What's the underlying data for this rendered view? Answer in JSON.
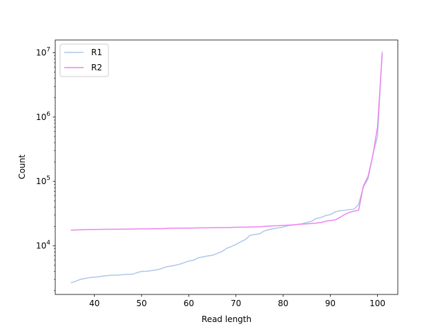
{
  "chart_data": {
    "type": "line",
    "xlabel": "Read length",
    "ylabel": "Count",
    "yscale": "log",
    "xlim": [
      31.7,
      104.3
    ],
    "ylim": [
      1750,
      15800000
    ],
    "xticks": [
      40,
      50,
      60,
      70,
      80,
      90,
      100
    ],
    "yticks": [
      {
        "base": "10",
        "exp": "4",
        "value": 10000
      },
      {
        "base": "10",
        "exp": "5",
        "value": 100000
      },
      {
        "base": "10",
        "exp": "6",
        "value": 1000000
      },
      {
        "base": "10",
        "exp": "7",
        "value": 10000000
      }
    ],
    "grid": false,
    "legend_position": "top-left",
    "x": [
      35,
      36,
      37,
      38,
      39,
      40,
      41,
      42,
      43,
      44,
      45,
      46,
      47,
      48,
      49,
      50,
      51,
      52,
      53,
      54,
      55,
      56,
      57,
      58,
      59,
      60,
      61,
      62,
      63,
      64,
      65,
      66,
      67,
      68,
      69,
      70,
      71,
      72,
      73,
      74,
      75,
      76,
      77,
      78,
      79,
      80,
      81,
      82,
      83,
      84,
      85,
      86,
      87,
      88,
      89,
      90,
      91,
      92,
      93,
      94,
      95,
      96,
      97,
      98,
      99,
      100,
      101
    ],
    "series": [
      {
        "name": "R1",
        "color": "#aec7e8",
        "values": [
          2650,
          2800,
          3000,
          3100,
          3200,
          3250,
          3300,
          3400,
          3450,
          3480,
          3500,
          3550,
          3600,
          3600,
          3800,
          4000,
          4000,
          4100,
          4200,
          4350,
          4650,
          4800,
          4950,
          5150,
          5450,
          5800,
          5950,
          6500,
          6700,
          6950,
          7100,
          7600,
          8100,
          9100,
          9700,
          10500,
          11500,
          12500,
          14500,
          15000,
          15300,
          17000,
          17800,
          18500,
          19000,
          19500,
          20500,
          21000,
          21500,
          22000,
          23000,
          24000,
          26500,
          27500,
          29500,
          30500,
          33500,
          35000,
          35500,
          36500,
          37000,
          44000,
          82000,
          110000,
          260000,
          500000,
          10500000
        ]
      },
      {
        "name": "R2",
        "color": "#ee82ee",
        "values": [
          17500,
          17600,
          17700,
          17800,
          17900,
          17950,
          18000,
          18050,
          18050,
          18100,
          18100,
          18150,
          18150,
          18200,
          18250,
          18300,
          18300,
          18350,
          18350,
          18450,
          18550,
          18700,
          18750,
          18750,
          18800,
          18850,
          18900,
          18950,
          19000,
          19000,
          19050,
          19100,
          19150,
          19200,
          19300,
          19400,
          19450,
          19500,
          19600,
          19650,
          19700,
          20000,
          20200,
          20400,
          20500,
          20700,
          20900,
          21100,
          21400,
          21700,
          21900,
          22200,
          22500,
          23000,
          24000,
          24700,
          25200,
          27500,
          30500,
          33000,
          34500,
          35500,
          85000,
          120000,
          250000,
          700000,
          9800000
        ]
      }
    ]
  }
}
